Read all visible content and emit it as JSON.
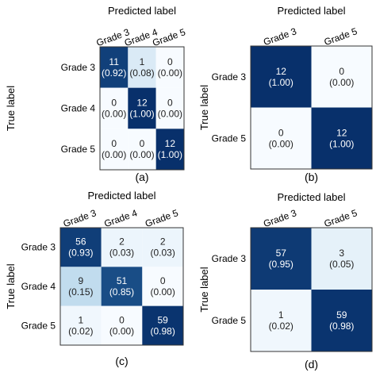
{
  "chart_data": [
    {
      "type": "heatmap",
      "panel_label": "(a)",
      "title": "Predicted label",
      "ylabel": "True label",
      "x_categories": [
        "Grade 3",
        "Grade 4",
        "Grade 5"
      ],
      "y_categories": [
        "Grade 3",
        "Grade 4",
        "Grade 5"
      ],
      "counts": [
        [
          11,
          1,
          0
        ],
        [
          0,
          12,
          0
        ],
        [
          0,
          0,
          12
        ]
      ],
      "fractions": [
        [
          "0.92",
          "0.08",
          "0.00"
        ],
        [
          "0.00",
          "1.00",
          "0.00"
        ],
        [
          "0.00",
          "0.00",
          "1.00"
        ]
      ]
    },
    {
      "type": "heatmap",
      "panel_label": "(b)",
      "title": "Predicted label",
      "ylabel": "True label",
      "x_categories": [
        "Grade 3",
        "Grade 5"
      ],
      "y_categories": [
        "Grade 3",
        "Grade 5"
      ],
      "counts": [
        [
          12,
          0
        ],
        [
          0,
          12
        ]
      ],
      "fractions": [
        [
          "1.00",
          "0.00"
        ],
        [
          "0.00",
          "1.00"
        ]
      ]
    },
    {
      "type": "heatmap",
      "panel_label": "(c)",
      "title": "Predicted label",
      "ylabel": "True label",
      "x_categories": [
        "Grade 3",
        "Grade 4",
        "Grade 5"
      ],
      "y_categories": [
        "Grade 3",
        "Grade 4",
        "Grade 5"
      ],
      "counts": [
        [
          56,
          2,
          2
        ],
        [
          9,
          51,
          0
        ],
        [
          1,
          0,
          59
        ]
      ],
      "fractions": [
        [
          "0.93",
          "0.03",
          "0.03"
        ],
        [
          "0.15",
          "0.85",
          "0.00"
        ],
        [
          "0.02",
          "0.00",
          "0.98"
        ]
      ]
    },
    {
      "type": "heatmap",
      "panel_label": "(d)",
      "title": "Predicted label",
      "ylabel": "True label",
      "x_categories": [
        "Grade 3",
        "Grade 5"
      ],
      "y_categories": [
        "Grade 3",
        "Grade 5"
      ],
      "counts": [
        [
          57,
          3
        ],
        [
          1,
          59
        ]
      ],
      "fractions": [
        [
          "0.95",
          "0.05"
        ],
        [
          "0.02",
          "0.98"
        ]
      ]
    }
  ],
  "colors": {
    "low": "#f7fbff",
    "high": "#08306b",
    "text_dark": "#222222",
    "text_light": "#ffffff"
  }
}
